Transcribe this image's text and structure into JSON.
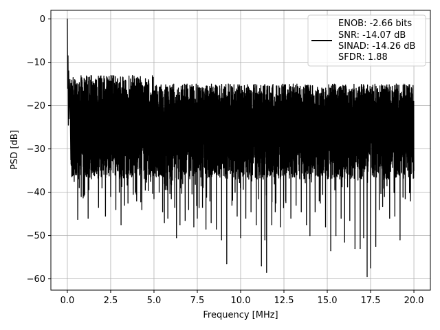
{
  "chart_data": {
    "type": "line",
    "title": "",
    "xlabel": "Frequency [MHz]",
    "ylabel": "PSD [dB]",
    "xlim": [
      -0.95,
      20.95
    ],
    "ylim": [
      -62.6,
      2.0
    ],
    "xticks": [
      0.0,
      2.5,
      5.0,
      7.5,
      10.0,
      12.5,
      15.0,
      17.5,
      20.0
    ],
    "xtick_labels": [
      "0.0",
      "2.5",
      "5.0",
      "7.5",
      "10.0",
      "12.5",
      "15.0",
      "17.5",
      "20.0"
    ],
    "yticks": [
      0,
      -10,
      -20,
      -30,
      -40,
      -50,
      -60
    ],
    "ytick_labels": [
      "0",
      "−10",
      "−20",
      "−30",
      "−40",
      "−50",
      "−60"
    ],
    "grid": true,
    "legend_position": "upper-right",
    "line_color": "#000000",
    "series": [
      {
        "legend_lines": [
          "ENOB: -2.66 bits",
          "SNR: -14.07 dB",
          "SINAD: -14.26 dB",
          "SFDR: 1.88"
        ],
        "x": [
          0.0,
          0.02,
          0.04,
          0.06,
          0.08,
          0.1,
          0.15,
          0.2,
          0.3,
          0.4,
          0.5,
          0.6,
          0.7,
          0.8,
          1.0,
          1.2,
          1.5,
          1.8,
          2.0,
          2.2,
          2.5,
          2.8,
          3.0,
          3.1,
          3.3,
          3.5,
          3.8,
          4.0,
          4.3,
          4.5,
          4.8,
          5.0,
          5.3,
          5.5,
          5.6,
          5.8,
          6.0,
          6.2,
          6.3,
          6.5,
          6.8,
          7.0,
          7.3,
          7.5,
          7.8,
          8.0,
          8.3,
          8.6,
          8.9,
          9.2,
          9.5,
          9.8,
          10.0,
          10.3,
          10.6,
          10.9,
          11.2,
          11.4,
          11.5,
          11.8,
          12.0,
          12.3,
          12.6,
          12.9,
          13.2,
          13.5,
          13.8,
          14.0,
          14.3,
          14.6,
          14.9,
          15.2,
          15.5,
          15.8,
          16.0,
          16.3,
          16.6,
          16.9,
          17.1,
          17.3,
          17.5,
          17.8,
          18.0,
          18.3,
          18.6,
          18.9,
          19.2,
          19.5,
          19.8,
          20.0
        ],
        "y": [
          0.0,
          -16.0,
          -8.5,
          -24.5,
          -12.0,
          -23.0,
          -14.0,
          -32.5,
          -15.5,
          -30.0,
          -18.0,
          -46.3,
          -17.0,
          -41.0,
          -40.5,
          -46.0,
          -36.0,
          -43.5,
          -39.0,
          -45.5,
          -41.0,
          -44.0,
          -40.0,
          -47.5,
          -43.0,
          -42.5,
          -39.0,
          -42.0,
          -44.0,
          -39.5,
          -37.5,
          -41.5,
          -40.0,
          -44.5,
          -47.0,
          -46.0,
          -41.5,
          -43.5,
          -50.5,
          -47.5,
          -46.5,
          -44.0,
          -48.0,
          -46.0,
          -43.5,
          -48.5,
          -47.0,
          -48.5,
          -51.0,
          -56.5,
          -43.0,
          -45.5,
          -50.5,
          -46.0,
          -44.5,
          -47.5,
          -57.0,
          -51.0,
          -58.5,
          -47.5,
          -44.5,
          -48.0,
          -42.0,
          -46.0,
          -43.0,
          -44.5,
          -47.5,
          -50.0,
          -44.5,
          -42.5,
          -48.0,
          -53.5,
          -50.0,
          -46.0,
          -51.5,
          -46.5,
          -53.0,
          -53.0,
          -50.5,
          -59.5,
          -57.5,
          -52.5,
          -44.0,
          -41.0,
          -46.0,
          -45.5,
          -51.0,
          -41.5,
          -42.0,
          -35.0
        ]
      }
    ]
  }
}
